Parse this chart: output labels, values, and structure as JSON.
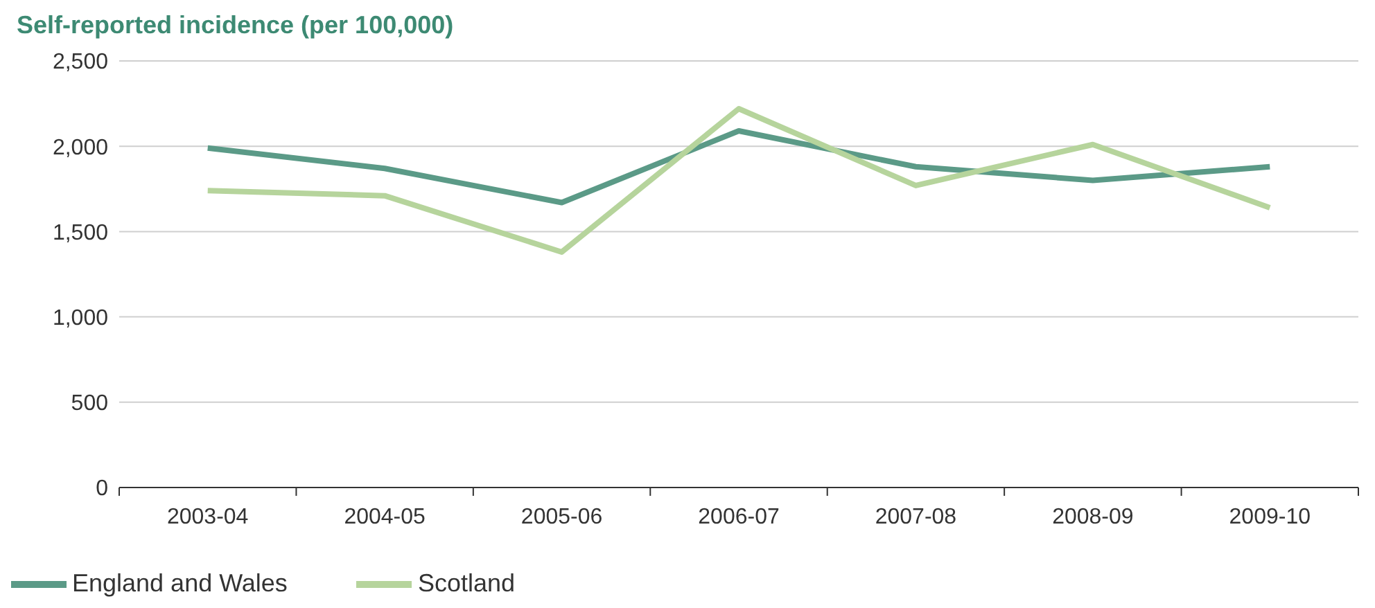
{
  "chart_data": {
    "type": "line",
    "title": "Self-reported incidence (per 100,000)",
    "categories": [
      "2003-04",
      "2004-05",
      "2005-06",
      "2006-07",
      "2007-08",
      "2008-09",
      "2009-10"
    ],
    "series": [
      {
        "name": "England and Wales",
        "color": "#5b9a87",
        "values": [
          1990,
          1870,
          1670,
          2090,
          1880,
          1800,
          1880
        ]
      },
      {
        "name": "Scotland",
        "color": "#b6d49c",
        "values": [
          1740,
          1710,
          1380,
          2220,
          1770,
          2010,
          1640
        ]
      }
    ],
    "ylim": [
      0,
      2500
    ],
    "yticks": [
      0,
      500,
      {
        "value": 1000,
        "label": "1,000"
      },
      {
        "value": 1500,
        "label": "1,500"
      },
      {
        "value": 2000,
        "label": "2,000"
      },
      {
        "value": 2500,
        "label": "2,500"
      }
    ],
    "grid": "y",
    "legend": "bottom left",
    "marker": "none",
    "line_style": "solid"
  }
}
